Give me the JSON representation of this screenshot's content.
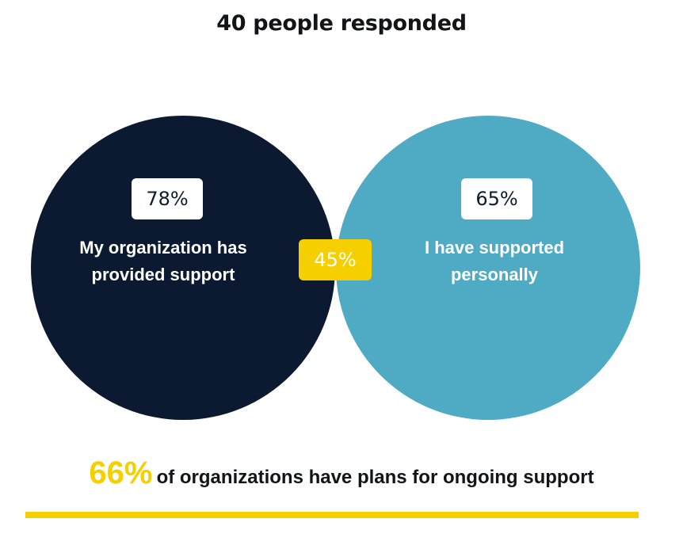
{
  "title": "40 people responded",
  "colors": {
    "organization_circle": "#0b1a31",
    "personal_circle": "#4faac4",
    "overlap_badge": "#f5cf00",
    "accent_rule": "#f5cf00"
  },
  "chart_data": {
    "type": "venn",
    "sets": [
      {
        "label": "My organization has provided support",
        "label_lines": [
          "My organization has",
          "provided support"
        ],
        "percent": "78%",
        "value": 78
      },
      {
        "label": "I have supported personally",
        "label_lines": [
          "I have supported",
          "personally"
        ],
        "percent": "65%",
        "value": 65
      }
    ],
    "intersection": {
      "percent": "45%",
      "value": 45
    }
  },
  "footer": {
    "highlight": "66%",
    "text": "of organizations have plans for ongoing support"
  }
}
